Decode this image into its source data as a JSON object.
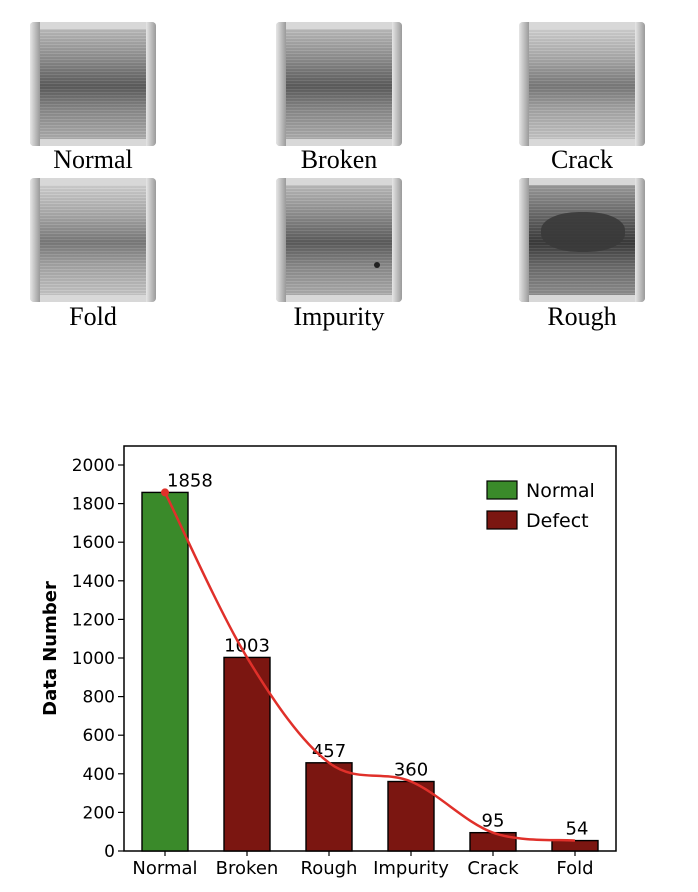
{
  "samples": [
    {
      "label": "Normal",
      "tone": "normal"
    },
    {
      "label": "Broken",
      "tone": "normal"
    },
    {
      "label": "Crack",
      "tone": "light"
    },
    {
      "label": "Fold",
      "tone": "light"
    },
    {
      "label": "Impurity",
      "tone": "normal"
    },
    {
      "label": "Rough",
      "tone": "dark"
    }
  ],
  "chart_data": {
    "type": "bar",
    "categories": [
      "Normal",
      "Broken",
      "Rough",
      "Impurity",
      "Crack",
      "Fold"
    ],
    "values": [
      1858,
      1003,
      457,
      360,
      95,
      54
    ],
    "bar_groups": [
      "Normal",
      "Defect",
      "Defect",
      "Defect",
      "Defect",
      "Defect"
    ],
    "title": "",
    "xlabel": "",
    "ylabel": "Data Number",
    "ylim": [
      0,
      2000
    ],
    "yticks": [
      0,
      200,
      400,
      600,
      800,
      1000,
      1200,
      1400,
      1600,
      1800,
      2000
    ],
    "legend": {
      "placement": "top-right",
      "entries": [
        {
          "name": "Normal",
          "color": "#3a8a2a"
        },
        {
          "name": "Defect",
          "color": "#7b1611"
        }
      ]
    },
    "trend_line": {
      "color": "#e0302a",
      "smooth": true
    },
    "grid": false
  }
}
